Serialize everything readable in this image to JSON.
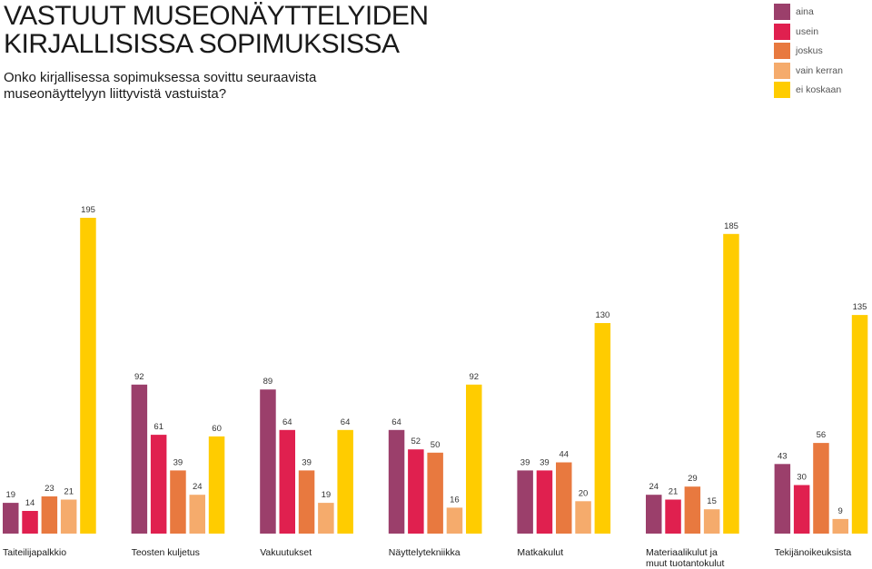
{
  "title_line1": "VASTUUT MUSEONÄYTTELYIDEN",
  "title_line2": "KIRJALLISISSA SOPIMUKSISSA",
  "subtitle_line1": "Onko kirjallisessa sopimuksessa sovittu seuraavista",
  "subtitle_line2": "museonäyttelyyn liittyvistä vastuista?",
  "colors": {
    "aina": "#9b3f6b",
    "usein": "#e0204f",
    "joskus": "#e8793f",
    "vain_kerran": "#f5ab6c",
    "ei_koskaan": "#ffcc00"
  },
  "chart_data": {
    "type": "bar",
    "ylim": [
      0,
      200
    ],
    "legend_position": "top-right",
    "grid": false,
    "categories": [
      [
        "Taiteilijapalkkio"
      ],
      [
        "Teosten kuljetus"
      ],
      [
        "Vakuutukset"
      ],
      [
        "Näyttelytekniikka"
      ],
      [
        "Matkakulut"
      ],
      [
        "Materiaalikulut ja",
        "muut tuotantokulut"
      ],
      [
        "Tekijänoikeuksista"
      ]
    ],
    "series": [
      {
        "name": "aina",
        "color": "#9b3f6b",
        "values": [
          19,
          92,
          89,
          64,
          39,
          24,
          43
        ]
      },
      {
        "name": "usein",
        "color": "#e0204f",
        "values": [
          14,
          61,
          64,
          52,
          39,
          21,
          30
        ]
      },
      {
        "name": "joskus",
        "color": "#e8793f",
        "values": [
          23,
          39,
          39,
          50,
          44,
          29,
          56
        ]
      },
      {
        "name": "vain kerran",
        "color": "#f5ab6c",
        "values": [
          21,
          24,
          19,
          16,
          20,
          15,
          9
        ]
      },
      {
        "name": "ei koskaan",
        "color": "#ffcc00",
        "values": [
          195,
          60,
          64,
          92,
          130,
          185,
          135
        ]
      }
    ]
  }
}
